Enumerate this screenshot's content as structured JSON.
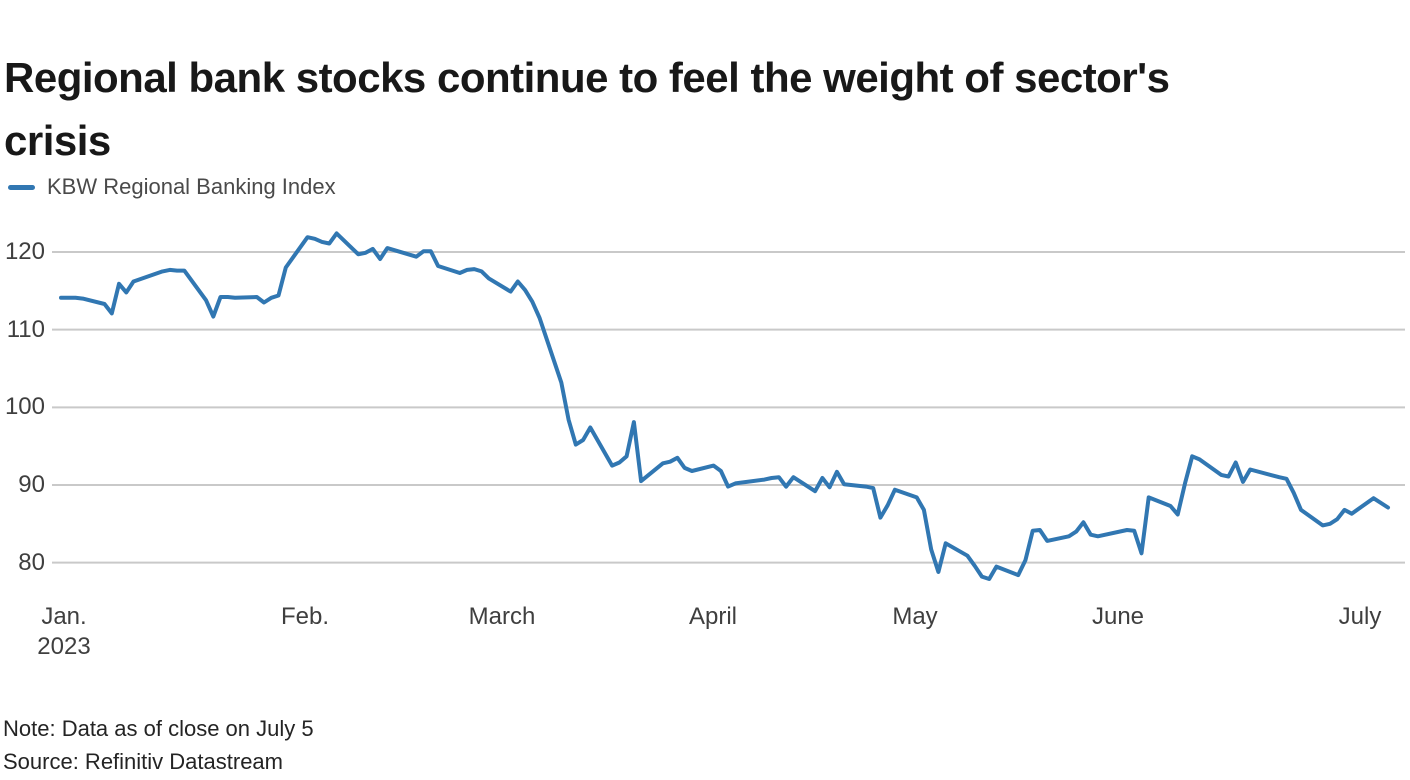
{
  "header": {
    "title": "Regional bank stocks continue to feel the weight of sector's crisis",
    "title_lines": [
      "Regional bank stocks continue to feel the weight of sector's",
      "crisis"
    ]
  },
  "legend": {
    "label": "KBW Regional Banking Index",
    "color": "#3177b2"
  },
  "footer": {
    "note": "Note: Data as of close on July 5",
    "source": "Source: Refinitiv Datastream"
  },
  "colors": {
    "line": "#3177b2",
    "grid": "#c9c9c9",
    "title_text": "#181818",
    "tick_text": "#3f3f3f",
    "legend_text": "#4a4a4a",
    "note_text": "#242424",
    "background": "#ffffff"
  },
  "chart_data": {
    "type": "line",
    "title": "Regional bank stocks continue to feel the weight of sector's crisis",
    "xlabel": "",
    "ylabel": "",
    "grid": "horizontal",
    "legend_position": "top-left",
    "ylim": [
      75.5,
      124.5
    ],
    "y_ticks": [
      120,
      110,
      100,
      90,
      80
    ],
    "x_range": [
      "2023-01-03",
      "2023-07-05"
    ],
    "x_ticks": [
      {
        "label": "Jan.",
        "sublabel": "2023",
        "px": 64
      },
      {
        "label": "Feb.",
        "px": 305
      },
      {
        "label": "March",
        "px": 502
      },
      {
        "label": "April",
        "px": 713
      },
      {
        "label": "May",
        "px": 915
      },
      {
        "label": "June",
        "px": 1118
      },
      {
        "label": "July",
        "px": 1360
      }
    ],
    "series": [
      {
        "name": "KBW Regional Banking Index",
        "color": "#3177b2",
        "dates": [
          "2023-01-03",
          "2023-01-04",
          "2023-01-05",
          "2023-01-06",
          "2023-01-09",
          "2023-01-10",
          "2023-01-11",
          "2023-01-12",
          "2023-01-13",
          "2023-01-17",
          "2023-01-18",
          "2023-01-19",
          "2023-01-20",
          "2023-01-23",
          "2023-01-24",
          "2023-01-25",
          "2023-01-26",
          "2023-01-27",
          "2023-01-30",
          "2023-01-31",
          "2023-02-01",
          "2023-02-02",
          "2023-02-03",
          "2023-02-06",
          "2023-02-07",
          "2023-02-08",
          "2023-02-09",
          "2023-02-10",
          "2023-02-13",
          "2023-02-14",
          "2023-02-15",
          "2023-02-16",
          "2023-02-17",
          "2023-02-21",
          "2023-02-22",
          "2023-02-23",
          "2023-02-24",
          "2023-02-27",
          "2023-02-28",
          "2023-03-01",
          "2023-03-02",
          "2023-03-03",
          "2023-03-06",
          "2023-03-07",
          "2023-03-08",
          "2023-03-09",
          "2023-03-10",
          "2023-03-13",
          "2023-03-14",
          "2023-03-15",
          "2023-03-16",
          "2023-03-17",
          "2023-03-20",
          "2023-03-21",
          "2023-03-22",
          "2023-03-23",
          "2023-03-24",
          "2023-03-27",
          "2023-03-28",
          "2023-03-29",
          "2023-03-30",
          "2023-03-31",
          "2023-04-03",
          "2023-04-04",
          "2023-04-05",
          "2023-04-06",
          "2023-04-10",
          "2023-04-11",
          "2023-04-12",
          "2023-04-13",
          "2023-04-14",
          "2023-04-17",
          "2023-04-18",
          "2023-04-19",
          "2023-04-20",
          "2023-04-21",
          "2023-04-24",
          "2023-04-25",
          "2023-04-26",
          "2023-04-27",
          "2023-04-28",
          "2023-05-01",
          "2023-05-02",
          "2023-05-03",
          "2023-05-04",
          "2023-05-05",
          "2023-05-08",
          "2023-05-09",
          "2023-05-10",
          "2023-05-11",
          "2023-05-12",
          "2023-05-15",
          "2023-05-16",
          "2023-05-17",
          "2023-05-18",
          "2023-05-19",
          "2023-05-22",
          "2023-05-23",
          "2023-05-24",
          "2023-05-25",
          "2023-05-26",
          "2023-05-30",
          "2023-05-31",
          "2023-06-01",
          "2023-06-02",
          "2023-06-05",
          "2023-06-06",
          "2023-06-07",
          "2023-06-08",
          "2023-06-09",
          "2023-06-12",
          "2023-06-13",
          "2023-06-14",
          "2023-06-15",
          "2023-06-16",
          "2023-06-20",
          "2023-06-21",
          "2023-06-22",
          "2023-06-23",
          "2023-06-26",
          "2023-06-27",
          "2023-06-28",
          "2023-06-29",
          "2023-06-30",
          "2023-07-03",
          "2023-07-05"
        ],
        "values": [
          114.1,
          114.1,
          114.1,
          114.0,
          113.3,
          112.1,
          115.9,
          114.8,
          116.2,
          117.5,
          117.7,
          117.6,
          117.6,
          113.8,
          111.7,
          114.2,
          114.2,
          114.1,
          114.2,
          113.5,
          114.1,
          114.4,
          118.0,
          121.9,
          121.7,
          121.3,
          121.1,
          122.4,
          119.7,
          119.9,
          120.4,
          119.1,
          120.5,
          119.4,
          120.1,
          120.1,
          118.2,
          117.3,
          117.7,
          117.8,
          117.5,
          116.6,
          114.9,
          116.2,
          115.1,
          113.6,
          111.5,
          103.2,
          98.4,
          95.2,
          95.8,
          97.4,
          92.5,
          92.9,
          93.7,
          98.1,
          90.5,
          92.8,
          93.0,
          93.5,
          92.2,
          91.8,
          92.5,
          91.8,
          89.8,
          90.2,
          90.7,
          90.9,
          91.0,
          89.8,
          91.0,
          89.2,
          90.9,
          89.7,
          91.7,
          90.1,
          89.8,
          89.6,
          85.8,
          87.4,
          89.4,
          88.4,
          86.8,
          81.7,
          78.8,
          82.5,
          80.9,
          79.6,
          78.2,
          77.9,
          79.5,
          78.4,
          80.3,
          84.1,
          84.2,
          82.8,
          83.4,
          84.0,
          85.2,
          83.6,
          83.4,
          84.2,
          84.1,
          81.2,
          88.4,
          87.3,
          86.2,
          90.2,
          93.7,
          93.3,
          91.3,
          91.1,
          92.9,
          90.4,
          92.0,
          91.0,
          90.8,
          89.0,
          86.8,
          84.8,
          85.0,
          85.6,
          86.8,
          86.3,
          88.3,
          87.1
        ]
      }
    ]
  }
}
